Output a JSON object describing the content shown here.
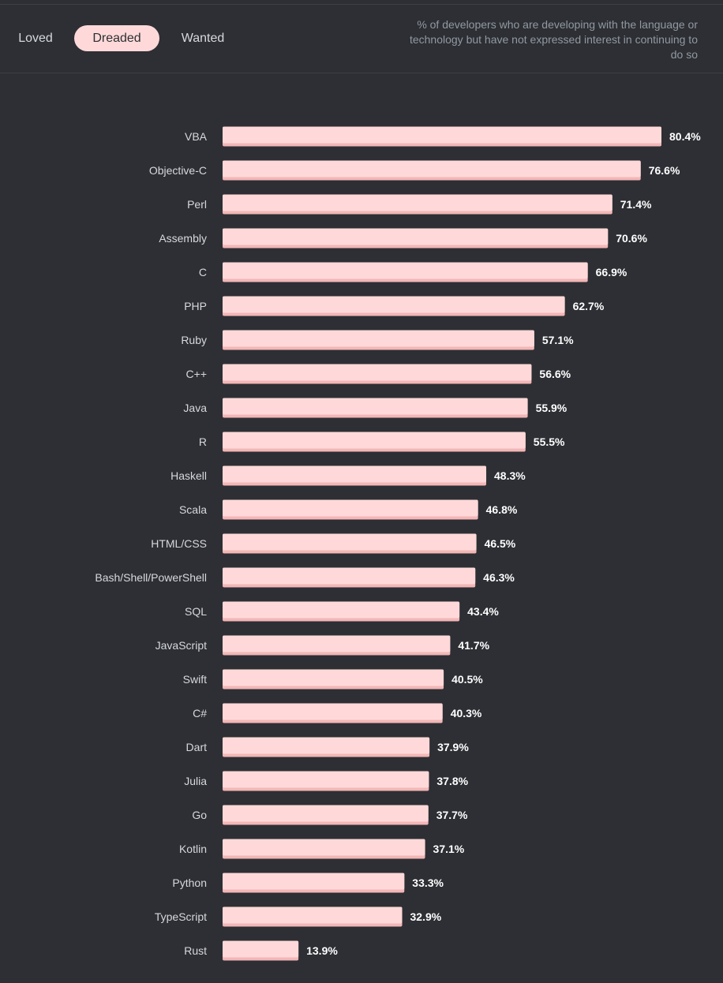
{
  "tabs": [
    {
      "label": "Loved"
    },
    {
      "label": "Dreaded"
    },
    {
      "label": "Wanted"
    }
  ],
  "description": "% of developers who are developing with the language or technology but have not expressed interest in continuing to do so",
  "colors": {
    "bar": "#ffd9d9",
    "bar_shadow": "#f3b6b6",
    "active_tab": "#ffd9d9",
    "background": "#2d2f34"
  },
  "chart_data": {
    "type": "bar",
    "orientation": "horizontal",
    "title": "",
    "xlabel": "",
    "ylabel": "",
    "xlim": [
      0,
      80.4
    ],
    "value_suffix": "%",
    "categories": [
      "VBA",
      "Objective-C",
      "Perl",
      "Assembly",
      "C",
      "PHP",
      "Ruby",
      "C++",
      "Java",
      "R",
      "Haskell",
      "Scala",
      "HTML/CSS",
      "Bash/Shell/PowerShell",
      "SQL",
      "JavaScript",
      "Swift",
      "C#",
      "Dart",
      "Julia",
      "Go",
      "Kotlin",
      "Python",
      "TypeScript",
      "Rust"
    ],
    "values": [
      80.4,
      76.6,
      71.4,
      70.6,
      66.9,
      62.7,
      57.1,
      56.6,
      55.9,
      55.5,
      48.3,
      46.8,
      46.5,
      46.3,
      43.4,
      41.7,
      40.5,
      40.3,
      37.9,
      37.8,
      37.7,
      37.1,
      33.3,
      32.9,
      13.9
    ],
    "labels": [
      "80.4%",
      "76.6%",
      "71.4%",
      "70.6%",
      "66.9%",
      "62.7%",
      "57.1%",
      "56.6%",
      "55.9%",
      "55.5%",
      "48.3%",
      "46.8%",
      "46.5%",
      "46.3%",
      "43.4%",
      "41.7%",
      "40.5%",
      "40.3%",
      "37.9%",
      "37.8%",
      "37.7%",
      "37.1%",
      "33.3%",
      "32.9%",
      "13.9%"
    ]
  }
}
